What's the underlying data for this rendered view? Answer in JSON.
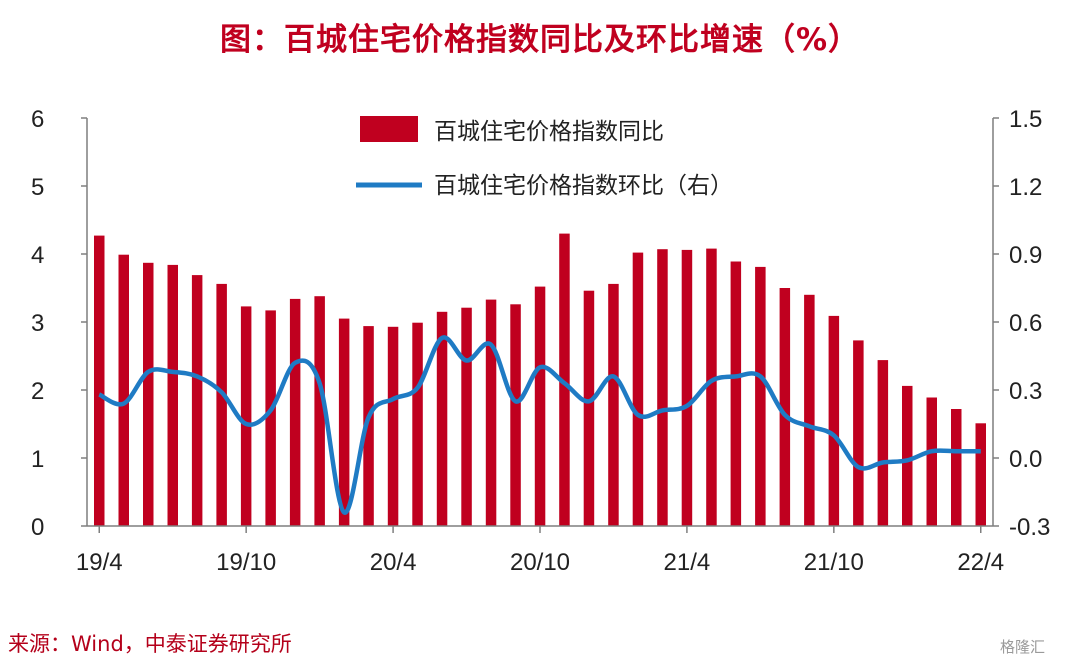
{
  "title": "图：百城住宅价格指数同比及环比增速（%）",
  "source": "来源：Wind，中泰证券研究所",
  "watermark": "格隆汇",
  "colors": {
    "bar": "#c0001f",
    "line": "#1f7bc4",
    "title": "#c0001f"
  },
  "chart_data": {
    "type": "bar+line",
    "categories": [
      "19/4",
      "19/5",
      "19/6",
      "19/7",
      "19/8",
      "19/9",
      "19/10",
      "19/11",
      "19/12",
      "20/1",
      "20/2",
      "20/3",
      "20/4",
      "20/5",
      "20/6",
      "20/7",
      "20/8",
      "20/9",
      "20/10",
      "20/11",
      "20/12",
      "21/1",
      "21/2",
      "21/3",
      "21/4",
      "21/5",
      "21/6",
      "21/7",
      "21/8",
      "21/9",
      "21/10",
      "21/11",
      "21/12",
      "22/1",
      "22/2",
      "22/3",
      "22/4"
    ],
    "x_tick_labels": [
      "19/4",
      "19/10",
      "20/4",
      "20/10",
      "21/4",
      "21/10",
      "22/4"
    ],
    "left_axis": {
      "min": 0,
      "max": 6,
      "ticks": [
        "0",
        "1",
        "2",
        "3",
        "4",
        "5",
        "6"
      ]
    },
    "right_axis": {
      "min": -0.3,
      "max": 1.5,
      "ticks": [
        "-0.3",
        "0.0",
        "0.3",
        "0.6",
        "0.9",
        "1.2",
        "1.5"
      ]
    },
    "series": [
      {
        "name": "百城住宅价格指数同比",
        "type": "bar",
        "axis": "left",
        "values": [
          4.27,
          3.99,
          3.87,
          3.84,
          3.69,
          3.56,
          3.23,
          3.17,
          3.34,
          3.38,
          3.05,
          2.94,
          2.93,
          2.99,
          3.15,
          3.21,
          3.33,
          3.26,
          3.52,
          4.3,
          3.46,
          3.56,
          4.02,
          4.07,
          4.06,
          4.08,
          3.89,
          3.81,
          3.5,
          3.4,
          3.09,
          2.73,
          2.44,
          2.06,
          1.89,
          1.72,
          1.51
        ]
      },
      {
        "name": "百城住宅价格指数环比（右）",
        "type": "line",
        "axis": "right",
        "values": [
          0.28,
          0.24,
          0.38,
          0.38,
          0.36,
          0.29,
          0.15,
          0.21,
          0.42,
          0.33,
          -0.24,
          0.18,
          0.26,
          0.31,
          0.53,
          0.43,
          0.5,
          0.25,
          0.4,
          0.33,
          0.25,
          0.36,
          0.19,
          0.21,
          0.23,
          0.34,
          0.36,
          0.36,
          0.19,
          0.14,
          0.1,
          -0.04,
          -0.02,
          -0.01,
          0.03,
          0.03,
          0.03
        ]
      }
    ],
    "legend_position": "top-center",
    "grid": false
  }
}
